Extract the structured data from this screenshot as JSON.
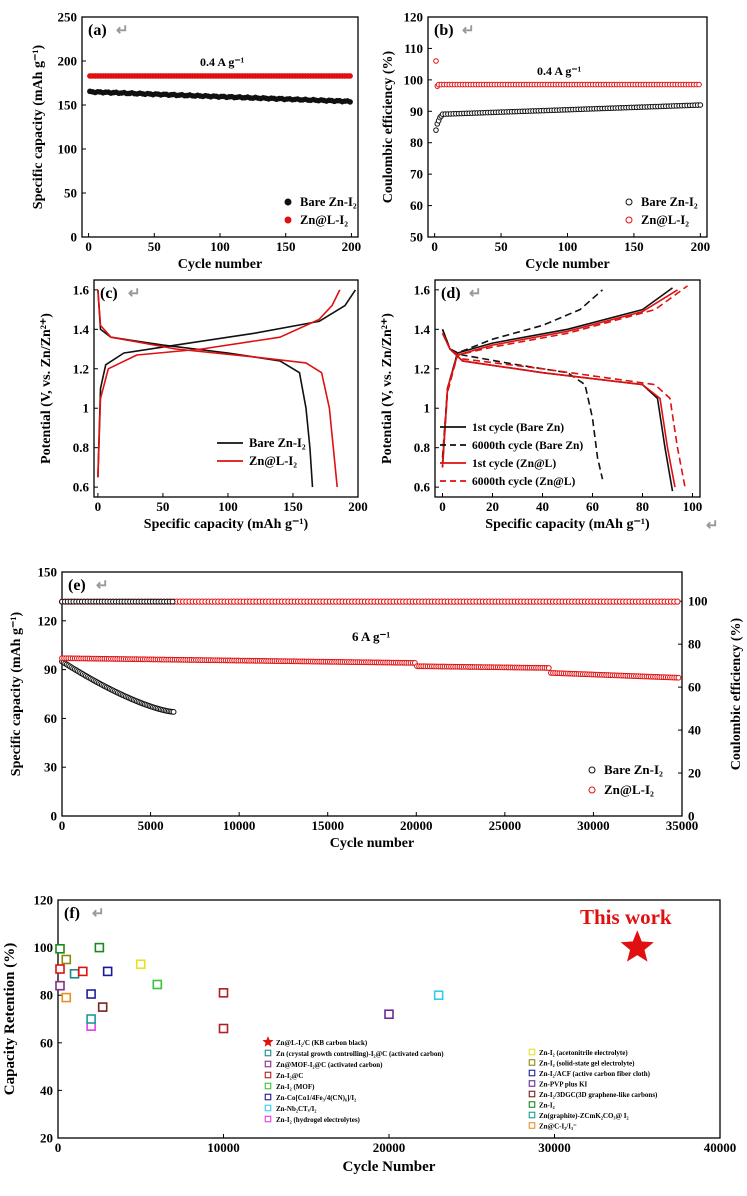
{
  "colors": {
    "black": "#111111",
    "red": "#e01010",
    "axis": "#000000"
  },
  "chart_data": [
    {
      "id": "a",
      "panel_label": "(a)",
      "type": "scatter",
      "xlabel": "Cycle number",
      "ylabel": "Specific capacity (mAh g⁻¹)",
      "xlim": [
        -5,
        205
      ],
      "ylim": [
        0,
        250
      ],
      "xticks": [
        0,
        50,
        100,
        150,
        200
      ],
      "yticks": [
        0,
        50,
        100,
        150,
        200,
        250
      ],
      "annotation": "0.4 A g⁻¹",
      "series": [
        {
          "name": "Bare Zn-I₂",
          "marker": "filled-black",
          "x_range": [
            1,
            200
          ],
          "y_start": 165,
          "y_end": 154
        },
        {
          "name": "Zn@L-I₂",
          "marker": "filled-red",
          "x_range": [
            1,
            200
          ],
          "y_start": 183,
          "y_end": 183
        }
      ],
      "legend": "bottom-right"
    },
    {
      "id": "b",
      "panel_label": "(b)",
      "type": "scatter",
      "xlabel": "Cycle number",
      "ylabel": "Coulombic efficiency (%)",
      "xlim": [
        -5,
        205
      ],
      "ylim": [
        50,
        120
      ],
      "xticks": [
        0,
        50,
        100,
        150,
        200
      ],
      "yticks": [
        50,
        60,
        70,
        80,
        90,
        100,
        110,
        120
      ],
      "annotation": "0.4 A g⁻¹",
      "series": [
        {
          "name": "Bare Zn-I₂",
          "marker": "open-black",
          "first_points": [
            84,
            86,
            87,
            88,
            88.5
          ],
          "y_start": 89,
          "y_end": 92
        },
        {
          "name": "Zn@L-I₂",
          "marker": "open-red",
          "first_points": [
            106,
            98
          ],
          "y_start": 98.5,
          "y_end": 98.5
        }
      ],
      "legend": "bottom-right"
    },
    {
      "id": "c",
      "panel_label": "(c)",
      "type": "line",
      "xlabel": "Specific capacity (mAh g⁻¹)",
      "ylabel": "Potential (V, vs. Zn/Zn²⁺)",
      "xlim": [
        -3,
        200
      ],
      "ylim": [
        0.55,
        1.65
      ],
      "xticks": [
        0,
        50,
        100,
        150,
        200
      ],
      "yticks": [
        0.6,
        0.8,
        1.0,
        1.2,
        1.4,
        1.6
      ],
      "series": [
        {
          "name": "Bare Zn-I₂",
          "color": "black",
          "discharge": [
            [
              0,
              1.6
            ],
            [
              2,
              1.4
            ],
            [
              10,
              1.36
            ],
            [
              50,
              1.32
            ],
            [
              100,
              1.28
            ],
            [
              140,
              1.24
            ],
            [
              155,
              1.18
            ],
            [
              160,
              1.0
            ],
            [
              163,
              0.8
            ],
            [
              165,
              0.6
            ]
          ],
          "charge": [
            [
              0,
              0.65
            ],
            [
              2,
              1.1
            ],
            [
              6,
              1.22
            ],
            [
              20,
              1.28
            ],
            [
              60,
              1.32
            ],
            [
              120,
              1.38
            ],
            [
              170,
              1.44
            ],
            [
              190,
              1.52
            ],
            [
              198,
              1.6
            ]
          ]
        },
        {
          "name": "Zn@L-I₂",
          "color": "red",
          "discharge": [
            [
              0,
              1.6
            ],
            [
              2,
              1.42
            ],
            [
              10,
              1.36
            ],
            [
              60,
              1.3
            ],
            [
              120,
              1.26
            ],
            [
              160,
              1.23
            ],
            [
              172,
              1.18
            ],
            [
              178,
              1.0
            ],
            [
              181,
              0.8
            ],
            [
              184,
              0.6
            ]
          ],
          "charge": [
            [
              0,
              0.65
            ],
            [
              2,
              1.05
            ],
            [
              8,
              1.2
            ],
            [
              30,
              1.27
            ],
            [
              80,
              1.3
            ],
            [
              140,
              1.36
            ],
            [
              170,
              1.45
            ],
            [
              180,
              1.52
            ],
            [
              186,
              1.6
            ]
          ]
        }
      ],
      "legend": "bottom-right"
    },
    {
      "id": "d",
      "panel_label": "(d)",
      "type": "line",
      "xlabel": "Specific capacity (mAh g⁻¹)",
      "ylabel": "Potential (V, vs. Zn/Zn²⁺)",
      "xlim": [
        -3,
        103
      ],
      "ylim": [
        0.55,
        1.65
      ],
      "xticks": [
        0,
        20,
        40,
        60,
        80,
        100
      ],
      "yticks": [
        0.6,
        0.8,
        1.0,
        1.2,
        1.4,
        1.6
      ],
      "series": [
        {
          "name": "1st cycle (Bare Zn)",
          "color": "black",
          "dash": "solid",
          "discharge": [
            [
              0,
              1.4
            ],
            [
              3,
              1.3
            ],
            [
              8,
              1.24
            ],
            [
              40,
              1.18
            ],
            [
              80,
              1.12
            ],
            [
              86,
              1.05
            ],
            [
              89,
              0.8
            ],
            [
              92,
              0.58
            ]
          ],
          "charge": [
            [
              0,
              0.7
            ],
            [
              2,
              1.1
            ],
            [
              6,
              1.28
            ],
            [
              20,
              1.33
            ],
            [
              50,
              1.4
            ],
            [
              80,
              1.5
            ],
            [
              92,
              1.61
            ]
          ]
        },
        {
          "name": "6000th cycle (Bare Zn)",
          "color": "black",
          "dash": "dashed",
          "discharge": [
            [
              0,
              1.4
            ],
            [
              3,
              1.3
            ],
            [
              8,
              1.27
            ],
            [
              30,
              1.22
            ],
            [
              50,
              1.18
            ],
            [
              57,
              1.12
            ],
            [
              60,
              0.95
            ],
            [
              62,
              0.75
            ],
            [
              64,
              0.64
            ]
          ],
          "charge": [
            [
              0,
              0.75
            ],
            [
              2,
              1.1
            ],
            [
              6,
              1.28
            ],
            [
              20,
              1.35
            ],
            [
              40,
              1.42
            ],
            [
              55,
              1.5
            ],
            [
              64,
              1.6
            ]
          ]
        },
        {
          "name": "1st cycle (Zn@L)",
          "color": "red",
          "dash": "solid",
          "discharge": [
            [
              0,
              1.38
            ],
            [
              3,
              1.3
            ],
            [
              8,
              1.24
            ],
            [
              40,
              1.18
            ],
            [
              80,
              1.12
            ],
            [
              87,
              1.05
            ],
            [
              90,
              0.8
            ],
            [
              93,
              0.6
            ]
          ],
          "charge": [
            [
              0,
              0.72
            ],
            [
              2,
              1.1
            ],
            [
              6,
              1.27
            ],
            [
              20,
              1.32
            ],
            [
              50,
              1.39
            ],
            [
              80,
              1.49
            ],
            [
              94,
              1.6
            ]
          ]
        },
        {
          "name": "6000th cycle (Zn@L)",
          "color": "red",
          "dash": "dashed",
          "discharge": [
            [
              0,
              1.38
            ],
            [
              3,
              1.3
            ],
            [
              8,
              1.25
            ],
            [
              40,
              1.2
            ],
            [
              85,
              1.12
            ],
            [
              91,
              1.05
            ],
            [
              94,
              0.8
            ],
            [
              97,
              0.6
            ]
          ],
          "charge": [
            [
              0,
              0.7
            ],
            [
              2,
              1.08
            ],
            [
              6,
              1.27
            ],
            [
              20,
              1.31
            ],
            [
              50,
              1.38
            ],
            [
              85,
              1.5
            ],
            [
              98,
              1.62
            ]
          ]
        }
      ],
      "legend": "bottom-left"
    },
    {
      "id": "e",
      "panel_label": "(e)",
      "type": "scatter",
      "xlabel": "Cycle number",
      "ylabel": "Specific capacity (mAh g⁻¹)",
      "y2label": "Coulombic efficiency (%)",
      "xlim": [
        0,
        35000
      ],
      "ylim": [
        0,
        150
      ],
      "y2lim": [
        0,
        113.6
      ],
      "xticks": [
        0,
        5000,
        10000,
        15000,
        20000,
        25000,
        30000,
        35000
      ],
      "yticks": [
        0,
        30,
        60,
        90,
        120,
        150
      ],
      "y2ticks": [
        0,
        20,
        40,
        60,
        80,
        100
      ],
      "annotation": "6 A g⁻¹",
      "series": [
        {
          "name": "Bare Zn-I₂",
          "marker": "open-black",
          "capacity_start": 95,
          "capacity_end": 64,
          "x_end": 6300,
          "ce": 99.8
        },
        {
          "name": "Zn@L-I₂",
          "marker": "open-red",
          "capacity_start": 97,
          "capacity_mid": 93,
          "capacity_end": 85,
          "x_end": 34800,
          "ce": 99.8
        }
      ],
      "legend": "bottom-right"
    },
    {
      "id": "f",
      "panel_label": "(f)",
      "type": "scatter",
      "xlabel": "Cycle Number",
      "ylabel": "Capacity Retention (%)",
      "xlim": [
        0,
        40000
      ],
      "ylim": [
        20,
        120
      ],
      "xticks": [
        0,
        10000,
        20000,
        30000,
        40000
      ],
      "yticks": [
        20,
        40,
        60,
        80,
        100,
        120
      ],
      "annotation": "This work",
      "points": [
        {
          "label": "Zn@L-I₂/C (KB carbon black)",
          "color": "#e01010",
          "marker": "star",
          "x": 35000,
          "y": 100
        },
        {
          "label": "Zn (crystal growth controlling)-I₂@C (activated carbon)",
          "color": "#1a8a8a",
          "marker": "square",
          "x": 1000,
          "y": 89
        },
        {
          "label": "Zn@MOF-I₂@C (activated carbon)",
          "color": "#8a2a8a",
          "marker": "square",
          "x": 0,
          "y": 84
        },
        {
          "label": "Zn-I₂@C",
          "color": "#b02020",
          "marker": "square",
          "x": 10000,
          "y": 81
        },
        {
          "label": "Zn-I₂ (MOF)",
          "color": "#3ac43a",
          "marker": "square",
          "x": 6000,
          "y": 84.5
        },
        {
          "label": "Zn-Co[Co1/4Fe₃/4(CN)₆]/I₂",
          "color": "#1a1a9a",
          "marker": "square",
          "x": 3000,
          "y": 90
        },
        {
          "label": "Zn-Nb₂CTₓ/I₂",
          "color": "#33ccee",
          "marker": "square",
          "x": 23000,
          "y": 80
        },
        {
          "label": "Zn-I₂ (hydrogel electrolytes)",
          "color": "#e040e0",
          "marker": "square",
          "x": 2000,
          "y": 67
        },
        {
          "label": "Zn-I₂ (acetonitrile electrolyte)",
          "color": "#e8e020",
          "marker": "square",
          "x": 5000,
          "y": 93
        },
        {
          "label": "Zn-I₂ (solid-state gel electrolyte)",
          "color": "#8a8a10",
          "marker": "square",
          "x": 500,
          "y": 95
        },
        {
          "label": "Zn-I₂/ACF (active carbon fiber cloth)",
          "color": "#2020a0",
          "marker": "square",
          "x": 2000,
          "y": 80.5
        },
        {
          "label": "Zn-PVP plus KI",
          "color": "#6a2a9a",
          "marker": "square",
          "x": 20000,
          "y": 72
        },
        {
          "label": "Zn-I₂/3DGC(3D graphene-like carbons)",
          "color": "#7a2020",
          "marker": "square",
          "x": 2700,
          "y": 75
        },
        {
          "label": "Zn-I₂",
          "color": "#1a8a1a",
          "marker": "square",
          "x": 0,
          "y": 99.5
        },
        {
          "label": "Zn(graphite)-ZCmK₂CO₃@ I₂",
          "color": "#1a9a9a",
          "marker": "square",
          "x": 2000,
          "y": 70
        },
        {
          "label": "Zn@C-I₂/I₃⁻",
          "color": "#e89020",
          "marker": "square",
          "x": 500,
          "y": 79
        }
      ],
      "extra_points": [
        {
          "color": "#e01010",
          "x": 0,
          "y": 91
        },
        {
          "color": "#e01010",
          "x": 1500,
          "y": 90
        },
        {
          "color": "#b02020",
          "x": 10000,
          "y": 66
        },
        {
          "color": "#1a8a1a",
          "x": 2500,
          "y": 100
        }
      ]
    }
  ]
}
